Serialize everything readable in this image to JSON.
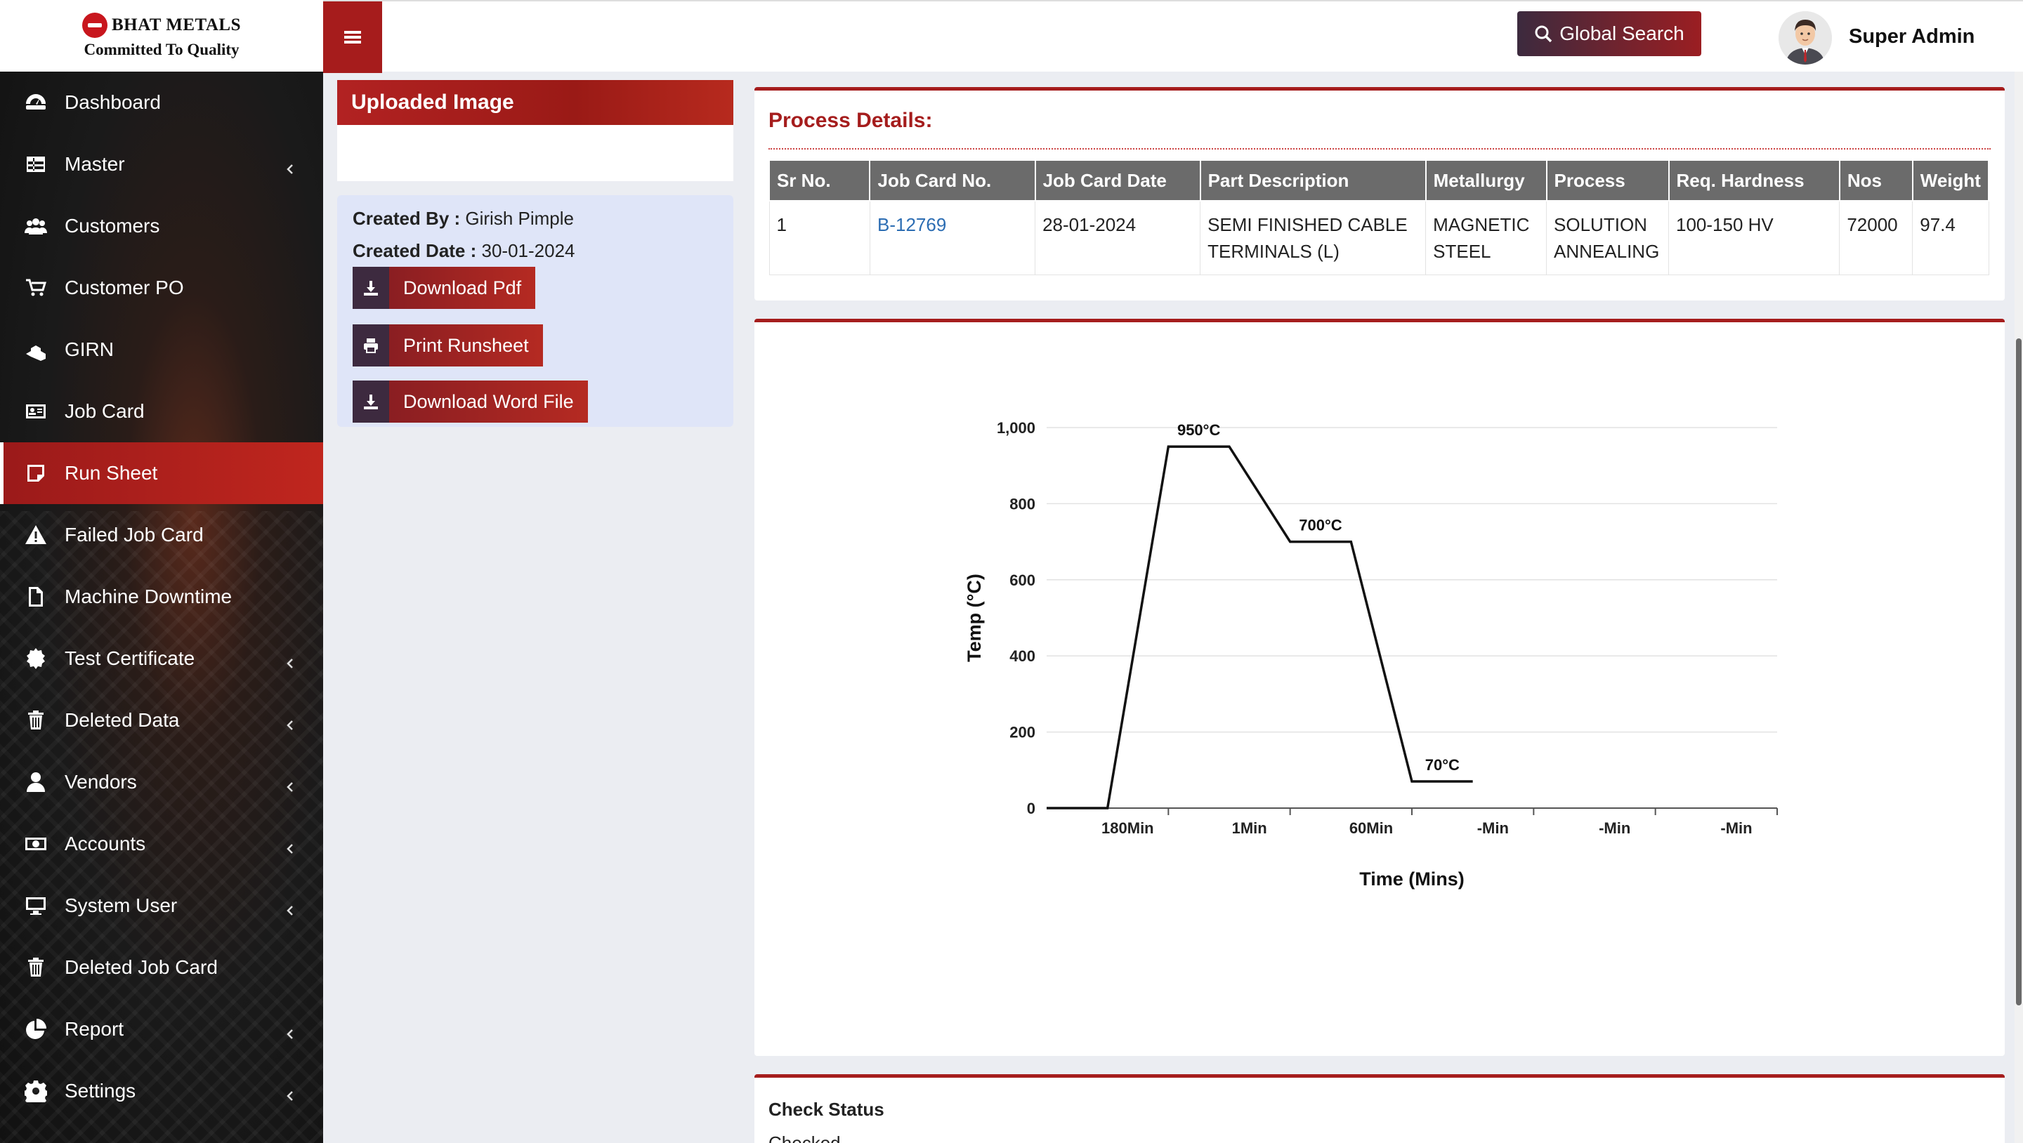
{
  "brand": {
    "name": "BHAT METALS",
    "tagline": "Committed To Quality"
  },
  "sidebar": {
    "items": [
      {
        "label": "Dashboard",
        "icon": "dashboard-icon",
        "has_submenu": false
      },
      {
        "label": "Master",
        "icon": "table-icon",
        "has_submenu": true
      },
      {
        "label": "Customers",
        "icon": "users-icon",
        "has_submenu": false
      },
      {
        "label": "Customer PO",
        "icon": "cart-icon",
        "has_submenu": false
      },
      {
        "label": "GIRN",
        "icon": "cubes-icon",
        "has_submenu": false
      },
      {
        "label": "Job Card",
        "icon": "id-card-icon",
        "has_submenu": false
      },
      {
        "label": "Run Sheet",
        "icon": "note-icon",
        "has_submenu": false,
        "active": true
      },
      {
        "label": "Failed Job Card",
        "icon": "warning-icon",
        "has_submenu": false
      },
      {
        "label": "Machine Downtime",
        "icon": "file-icon",
        "has_submenu": false
      },
      {
        "label": "Test Certificate",
        "icon": "certificate-icon",
        "has_submenu": true
      },
      {
        "label": "Deleted Data",
        "icon": "trash-icon",
        "has_submenu": true
      },
      {
        "label": "Vendors",
        "icon": "user-icon",
        "has_submenu": true
      },
      {
        "label": "Accounts",
        "icon": "money-icon",
        "has_submenu": true
      },
      {
        "label": "System User",
        "icon": "desktop-icon",
        "has_submenu": true
      },
      {
        "label": "Deleted Job Card",
        "icon": "trash-icon",
        "has_submenu": false
      },
      {
        "label": "Report",
        "icon": "pie-chart-icon",
        "has_submenu": true
      },
      {
        "label": "Settings",
        "icon": "gear-icon",
        "has_submenu": true
      }
    ]
  },
  "header": {
    "search_label": "Global Search",
    "user_name": "Super Admin"
  },
  "uploaded": {
    "title": "Uploaded Image",
    "created_by_label": "Created By :",
    "created_by": "Girish Pimple",
    "created_date_label": "Created Date :",
    "created_date": "30-01-2024",
    "buttons": {
      "download_pdf": "Download Pdf",
      "print_runsheet": "Print Runsheet",
      "download_word": "Download Word File"
    }
  },
  "process": {
    "title": "Process Details:",
    "columns": [
      "Sr No.",
      "Job Card No.",
      "Job Card Date",
      "Part Description",
      "Metallurgy",
      "Process",
      "Req. Hardness",
      "Nos",
      "Weight"
    ],
    "rows": [
      {
        "sr": "1",
        "job_card_no": "B-12769",
        "job_card_date": "28-01-2024",
        "part_description": "SEMI FINISHED CABLE TERMINALS (L)",
        "metallurgy": "MAGNETIC STEEL",
        "process": "SOLUTION ANNEALING",
        "req_hardness": "100-150 HV",
        "nos": "72000",
        "weight": "97.4"
      }
    ]
  },
  "chart_data": {
    "type": "line",
    "title": "",
    "xlabel": "Time (Mins)",
    "ylabel": "Temp (°C)",
    "ylim": [
      0,
      1000
    ],
    "yticks": [
      0,
      200,
      400,
      600,
      800,
      1000
    ],
    "ytick_labels": [
      "0",
      "200",
      "400",
      "600",
      "800",
      "1,000"
    ],
    "x_categories": [
      "180Min",
      "1Min",
      "60Min",
      "-Min",
      "-Min",
      "-Min"
    ],
    "series": [
      {
        "points": [
          {
            "x": 0,
            "y": 0
          },
          {
            "x": 0.5,
            "y": 0
          },
          {
            "x": 1.0,
            "y": 950
          },
          {
            "x": 1.5,
            "y": 950
          },
          {
            "x": 2.0,
            "y": 700
          },
          {
            "x": 2.5,
            "y": 700
          },
          {
            "x": 3.0,
            "y": 70
          },
          {
            "x": 3.5,
            "y": 70
          }
        ]
      }
    ],
    "annotations": [
      {
        "text": "950°C",
        "x": 1.25,
        "y": 950
      },
      {
        "text": "700°C",
        "x": 2.25,
        "y": 700
      },
      {
        "text": "70°C",
        "x": 3.25,
        "y": 70
      }
    ],
    "grid": true,
    "legend": "none"
  },
  "check_status": {
    "title": "Check Status",
    "value": "Checked"
  }
}
